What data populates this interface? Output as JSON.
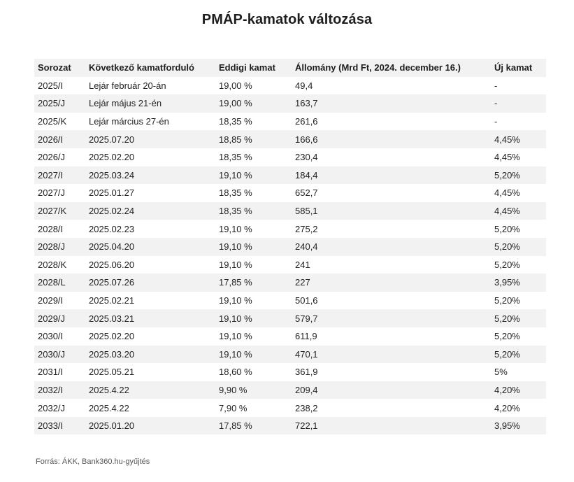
{
  "title": "PMÁP-kamatok változása",
  "table": {
    "headers": [
      "Sorozat",
      "Következő kamatforduló",
      "Eddigi kamat",
      "Állomány (Mrd Ft, 2024. december 16.)",
      "Új kamat"
    ],
    "rows": [
      [
        "2025/I",
        "Lejár február 20-án",
        "19,00 %",
        "49,4",
        "-"
      ],
      [
        "2025/J",
        "Lejár május 21-én",
        "19,00 %",
        "163,7",
        "-"
      ],
      [
        "2025/K",
        "Lejár március 27-én",
        "18,35 %",
        "261,6",
        "-"
      ],
      [
        "2026/I",
        "2025.07.20",
        "18,85 %",
        "166,6",
        "4,45%"
      ],
      [
        "2026/J",
        "2025.02.20",
        "18,35 %",
        "230,4",
        "4,45%"
      ],
      [
        "2027/I",
        "2025.03.24",
        "19,10 %",
        "184,4",
        "5,20%"
      ],
      [
        "2027/J",
        "2025.01.27",
        "18,35 %",
        "652,7",
        "4,45%"
      ],
      [
        "2027/K",
        "2025.02.24",
        "18,35 %",
        "585,1",
        "4,45%"
      ],
      [
        "2028/I",
        "2025.02.23",
        "19,10 %",
        "275,2",
        "5,20%"
      ],
      [
        "2028/J",
        "2025.04.20",
        "19,10 %",
        "240,4",
        "5,20%"
      ],
      [
        "2028/K",
        "2025.06.20",
        "19,10 %",
        "241",
        "5,20%"
      ],
      [
        "2028/L",
        "2025.07.26",
        "17,85 %",
        "227",
        "3,95%"
      ],
      [
        "2029/I",
        "2025.02.21",
        "19,10 %",
        "501,6",
        "5,20%"
      ],
      [
        "2029/J",
        "2025.03.21",
        "19,10 %",
        "579,7",
        "5,20%"
      ],
      [
        "2030/I",
        "2025.02.20",
        "19,10 %",
        "611,9",
        "5,20%"
      ],
      [
        "2030/J",
        "2025.03.20",
        "19,10 %",
        "470,1",
        "5,20%"
      ],
      [
        "2031/I",
        "2025.05.21",
        "18,60 %",
        "361,9",
        "5%"
      ],
      [
        "2032/I",
        "2025.4.22",
        "9,90 %",
        "209,4",
        "4,20%"
      ],
      [
        "2032/J",
        "2025.4.22",
        "7,90 %",
        "238,2",
        "4,20%"
      ],
      [
        "2033/I",
        "2025.01.20",
        "17,85 %",
        "722,1",
        "3,95%"
      ]
    ]
  },
  "source": "Forrás: ÁKK, Bank360.hu-gyűjtés"
}
